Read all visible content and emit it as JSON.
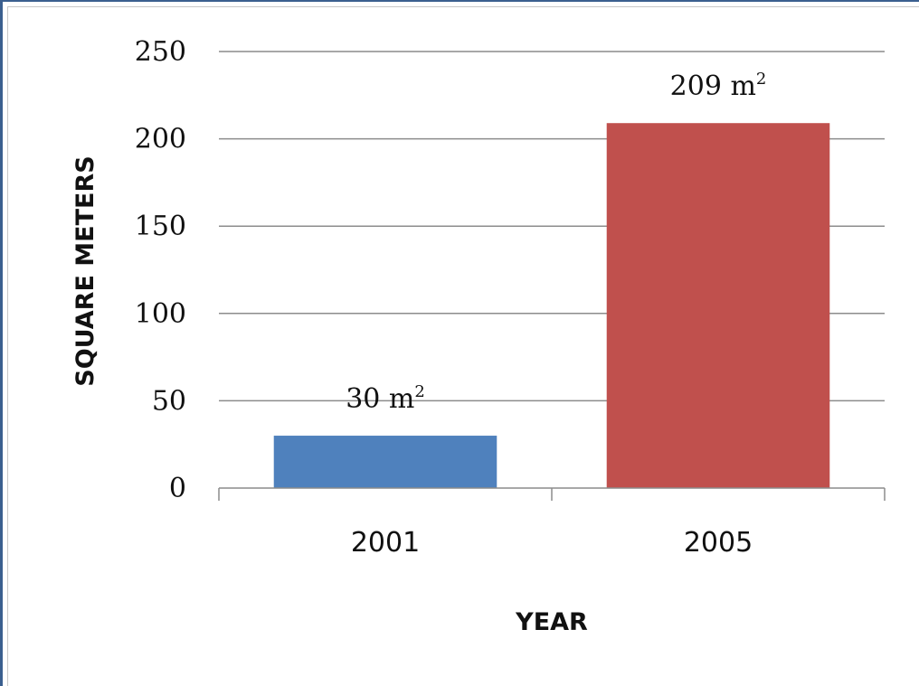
{
  "chart_data": {
    "type": "bar",
    "categories": [
      "2001",
      "2005"
    ],
    "values": [
      30,
      209
    ],
    "data_labels": [
      "30 m²",
      "209 m²"
    ],
    "bar_colors": [
      "#4f81bd",
      "#c0504d"
    ],
    "title": "",
    "xlabel": "YEAR",
    "ylabel": "SQUARE METERS",
    "ylim": [
      0,
      250
    ],
    "yticks": [
      0,
      50,
      100,
      150,
      200,
      250
    ],
    "grid": true,
    "legend": "none"
  }
}
